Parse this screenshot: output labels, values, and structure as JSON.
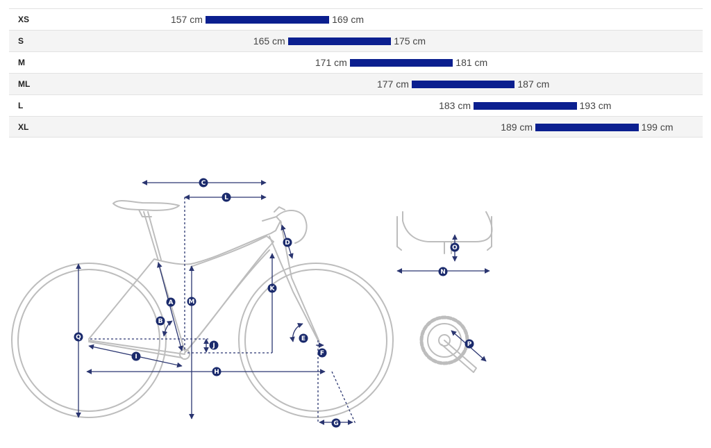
{
  "chart_data": {
    "type": "bar",
    "orientation": "horizontal",
    "title": "",
    "categories": [
      "XS",
      "S",
      "M",
      "ML",
      "L",
      "XL"
    ],
    "series": [
      {
        "ranges": [
          {
            "size": "XS",
            "min": 157,
            "max": 169,
            "min_label": "157 cm",
            "max_label": "169 cm"
          },
          {
            "size": "S",
            "min": 165,
            "max": 175,
            "min_label": "165 cm",
            "max_label": "175 cm"
          },
          {
            "size": "M",
            "min": 171,
            "max": 181,
            "min_label": "171 cm",
            "max_label": "181 cm"
          },
          {
            "size": "ML",
            "min": 177,
            "max": 187,
            "min_label": "177 cm",
            "max_label": "187 cm"
          },
          {
            "size": "L",
            "min": 183,
            "max": 193,
            "min_label": "183 cm",
            "max_label": "193 cm"
          },
          {
            "size": "XL",
            "min": 189,
            "max": 199,
            "min_label": "189 cm",
            "max_label": "199 cm"
          }
        ]
      }
    ],
    "unit": "cm",
    "xlim": [
      143,
      205
    ],
    "grid": false,
    "bar_color": "#0b1f8f"
  },
  "geometry": {
    "markers": [
      "A",
      "B",
      "C",
      "D",
      "E",
      "F",
      "G",
      "H",
      "I",
      "J",
      "K",
      "L",
      "M",
      "N",
      "O",
      "P",
      "Q"
    ],
    "marker_color": "#1a2a6c",
    "line_color": "#2a3570",
    "frame_color": "#bdbdbd"
  }
}
